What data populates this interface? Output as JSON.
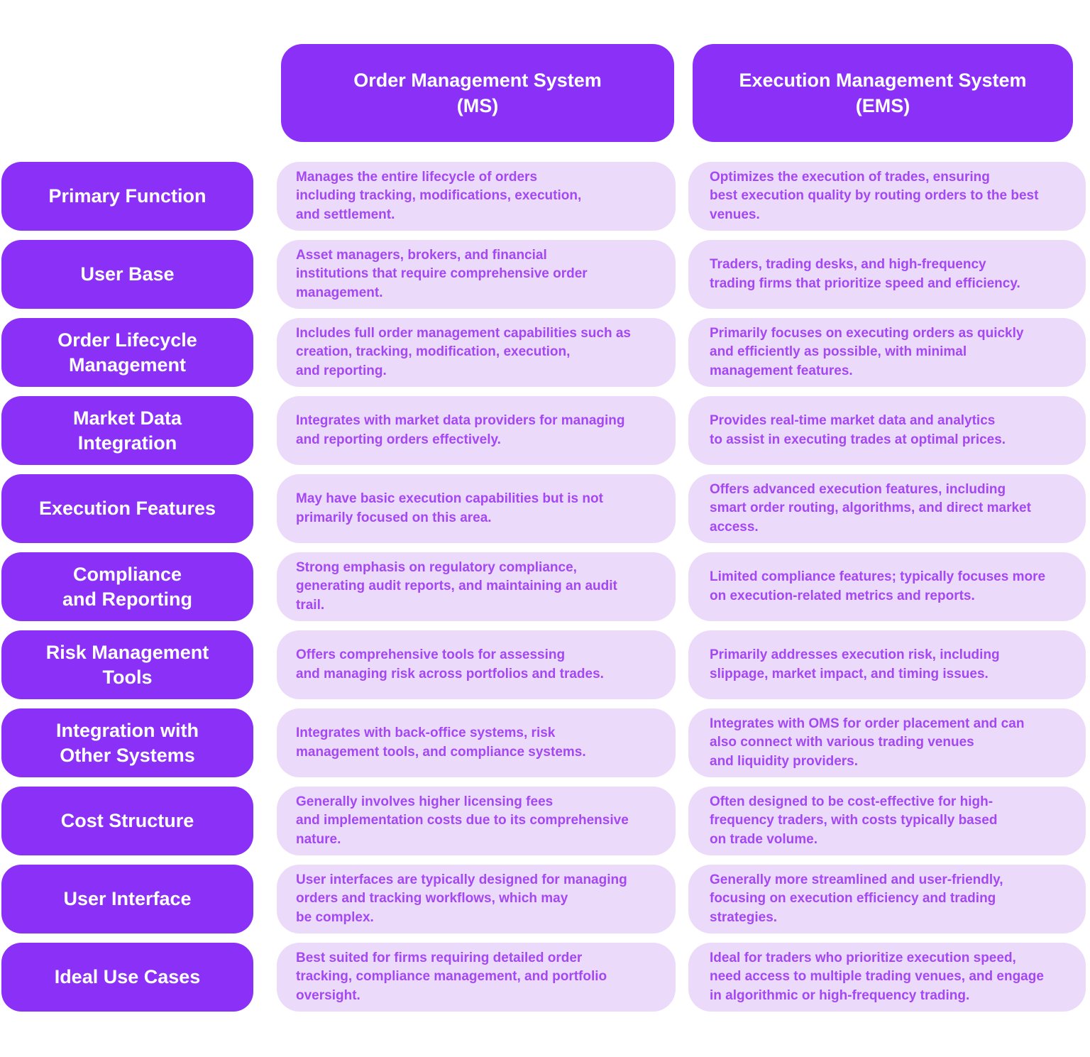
{
  "colors": {
    "accent": "#8B31F7",
    "cell_bg": "#ECDAFA",
    "cell_text": "#A348F2",
    "header_text": "#FFFFFF",
    "page_bg": "#FFFFFF"
  },
  "columns": [
    {
      "id": "oms",
      "header": "Order Management System\n(MS)"
    },
    {
      "id": "ems",
      "header": "Execution Management System\n(EMS)"
    }
  ],
  "rows": [
    {
      "label": "Primary Function",
      "oms": "Manages the entire lifecycle of orders\nincluding tracking, modifications, execution,\nand settlement.",
      "ems": "Optimizes the execution of trades, ensuring\nbest execution quality by routing orders to the best\nvenues."
    },
    {
      "label": "User Base",
      "oms": "Asset managers, brokers, and financial\ninstitutions that require comprehensive order\nmanagement.",
      "ems": "Traders, trading desks, and high-frequency\ntrading firms that prioritize speed and efficiency."
    },
    {
      "label": "Order Lifecycle\nManagement",
      "oms": "Includes full order management capabilities such as\ncreation, tracking, modification, execution,\nand reporting.",
      "ems": "Primarily focuses on executing orders as quickly\nand efficiently as possible, with minimal\nmanagement features."
    },
    {
      "label": "Market Data\nIntegration",
      "oms": "Integrates with market data providers for managing\nand reporting orders effectively.",
      "ems": "Provides real-time market data and analytics\nto assist in executing trades at optimal prices."
    },
    {
      "label": "Execution Features",
      "oms": "May have basic execution capabilities but is not\nprimarily focused on this area.",
      "ems": "Offers advanced execution features, including\nsmart order routing, algorithms, and direct market\naccess."
    },
    {
      "label": "Compliance\nand Reporting",
      "oms": "Strong emphasis on regulatory compliance,\ngenerating audit reports, and maintaining an audit\ntrail.",
      "ems": "Limited compliance features; typically focuses more\non execution-related metrics and reports."
    },
    {
      "label": "Risk Management\nTools",
      "oms": "Offers comprehensive tools for assessing\nand managing risk across portfolios and trades.",
      "ems": "Primarily addresses execution risk, including\nslippage, market impact, and timing issues."
    },
    {
      "label": "Integration with\nOther Systems",
      "oms": "Integrates with back-office systems, risk\nmanagement tools, and compliance systems.",
      "ems": "Integrates with OMS for order placement and can\nalso connect with various trading venues\nand liquidity providers."
    },
    {
      "label": "Cost Structure",
      "oms": "Generally involves higher licensing fees\nand implementation costs due to its comprehensive\nnature.",
      "ems": "Often designed to be cost-effective for high-\nfrequency traders, with costs typically based\non trade volume."
    },
    {
      "label": "User Interface",
      "oms": "User interfaces are typically designed for managing\norders and tracking workflows, which may\nbe complex.",
      "ems": "Generally more streamlined and user-friendly,\nfocusing on execution efficiency and trading\nstrategies."
    },
    {
      "label": "Ideal Use Cases",
      "oms": "Best suited for firms requiring detailed order\ntracking, compliance management, and portfolio\noversight.",
      "ems": "Ideal for traders who prioritize execution speed,\nneed access to multiple trading venues, and engage\nin algorithmic or high-frequency trading."
    }
  ]
}
